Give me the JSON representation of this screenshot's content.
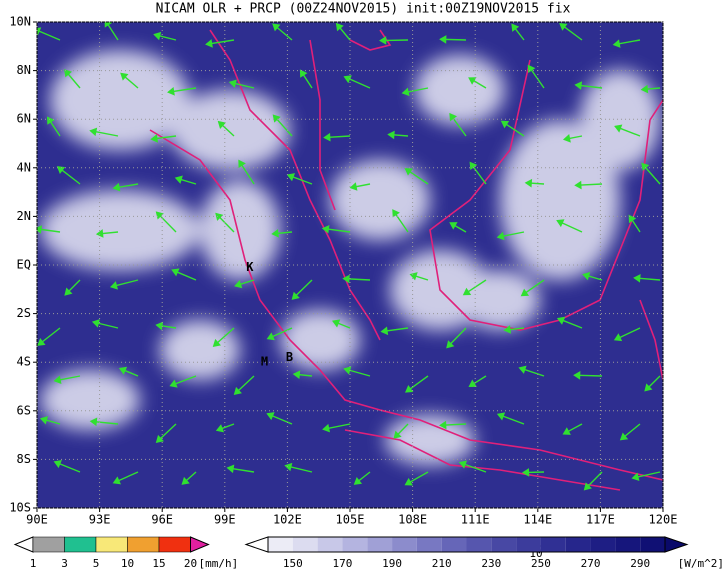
{
  "map": {
    "title": "NICAM OLR + PRCP (00Z24NOV2015) init:00Z19NOV2015 fix",
    "xlim": [
      90,
      120
    ],
    "ylim": [
      -10,
      10
    ],
    "xticks": [
      {
        "value": 90,
        "label": "90E"
      },
      {
        "value": 93,
        "label": "93E"
      },
      {
        "value": 96,
        "label": "96E"
      },
      {
        "value": 99,
        "label": "99E"
      },
      {
        "value": 102,
        "label": "102E"
      },
      {
        "value": 105,
        "label": "105E"
      },
      {
        "value": 108,
        "label": "108E"
      },
      {
        "value": 111,
        "label": "111E"
      },
      {
        "value": 114,
        "label": "114E"
      },
      {
        "value": 117,
        "label": "117E"
      },
      {
        "value": 120,
        "label": "120E"
      }
    ],
    "yticks": [
      {
        "value": 10,
        "label": "10N"
      },
      {
        "value": 8,
        "label": "8N"
      },
      {
        "value": 6,
        "label": "6N"
      },
      {
        "value": 4,
        "label": "4N"
      },
      {
        "value": 2,
        "label": "2N"
      },
      {
        "value": 0,
        "label": "EQ"
      },
      {
        "value": -2,
        "label": "2S"
      },
      {
        "value": -4,
        "label": "4S"
      },
      {
        "value": -6,
        "label": "6S"
      },
      {
        "value": -8,
        "label": "8S"
      },
      {
        "value": -10,
        "label": "10S"
      }
    ],
    "grid": true,
    "places": [
      {
        "label": "K",
        "lon": 100.2,
        "lat": -0.1
      },
      {
        "label": "M",
        "lon": 100.9,
        "lat": -4.0
      },
      {
        "label": "B",
        "lon": 102.1,
        "lat": -3.8
      }
    ],
    "vector_ref": "10",
    "precip_colorbar": {
      "levels": [
        1,
        3,
        5,
        10,
        15,
        20
      ],
      "colors": [
        "#a0a0a0",
        "#20c090",
        "#f8e878",
        "#f0a030",
        "#f03010"
      ],
      "over_color": "#e020a0",
      "unit": "[mm/h]"
    },
    "olr_colorbar": {
      "lim": [
        140,
        300
      ],
      "ticks": [
        150,
        170,
        190,
        210,
        230,
        250,
        270,
        290
      ],
      "colors": [
        "#ececf6",
        "#dcdcf0",
        "#c8c8e8",
        "#b4b4e0",
        "#a0a0d6",
        "#8c8ccc",
        "#7878c2",
        "#6666b8",
        "#5656ae",
        "#4848a4",
        "#3c3c9c",
        "#303094",
        "#26268c",
        "#1e1e84",
        "#16167c",
        "#101074"
      ],
      "under_color": "#ffffff",
      "over_color": "#0a0a6a",
      "unit": "[W/m^2]"
    }
  }
}
